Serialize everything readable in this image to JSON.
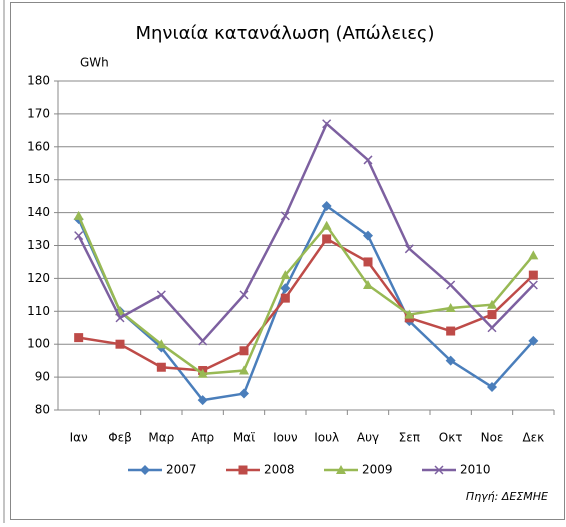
{
  "chart_data": {
    "type": "line",
    "title": "Μηνιαία κατανάλωση (Απώλειες)",
    "y_label": "GWh",
    "source": "Πηγή: ΔΕΣΜΗΕ",
    "categories": [
      "Ιαν",
      "Φεβ",
      "Μαρ",
      "Απρ",
      "Μαϊ",
      "Ιουν",
      "Ιουλ",
      "Αυγ",
      "Σεπ",
      "Οκτ",
      "Νοε",
      "Δεκ"
    ],
    "series": [
      {
        "name": "2007",
        "color": "#4a7ebb",
        "marker": "diamond",
        "values": [
          138,
          110,
          99,
          83,
          85,
          117,
          142,
          133,
          107,
          95,
          87,
          101
        ]
      },
      {
        "name": "2008",
        "color": "#be4b48",
        "marker": "square",
        "values": [
          102,
          100,
          93,
          92,
          98,
          114,
          132,
          125,
          108,
          104,
          109,
          121
        ]
      },
      {
        "name": "2009",
        "color": "#98b954",
        "marker": "triangle",
        "values": [
          139,
          110,
          100,
          91,
          92,
          121,
          136,
          118,
          109,
          111,
          112,
          127
        ]
      },
      {
        "name": "2010",
        "color": "#7d60a0",
        "marker": "x",
        "values": [
          133,
          108,
          115,
          101,
          115,
          139,
          167,
          156,
          129,
          118,
          105,
          118
        ]
      }
    ],
    "ylim": [
      80,
      180
    ],
    "yticks": [
      80,
      90,
      100,
      110,
      120,
      130,
      140,
      150,
      160,
      170,
      180
    ],
    "grid": true,
    "legend": "bottom"
  }
}
